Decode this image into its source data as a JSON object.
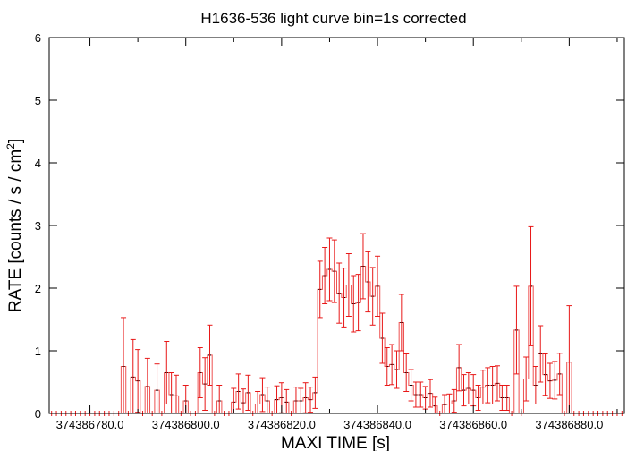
{
  "chart_data": {
    "type": "line",
    "style": "histogram-steps-with-errorbars",
    "title": "H1636-536 light curve bin=1s corrected",
    "xlabel": "MAXI TIME [s]",
    "ylabel_main": "RATE [counts / s / cm",
    "ylabel_sup": "2",
    "ylabel_close": "]",
    "xlim": [
      374386771.5,
      374386891.5
    ],
    "ylim": [
      0,
      6
    ],
    "xticks": [
      374386780,
      374386800,
      374386820,
      374386840,
      374386860,
      374386880
    ],
    "xtick_labels": [
      "374386780.0",
      "374386800.0",
      "374386820.0",
      "374386840.0",
      "374386860.0",
      "374386880.0"
    ],
    "yticks": [
      0,
      1,
      2,
      3,
      4,
      5,
      6
    ],
    "ytick_labels": [
      "0",
      "1",
      "2",
      "3",
      "4",
      "5",
      "6"
    ],
    "grid": false,
    "series": [
      {
        "color": "#e81818",
        "x_start": 374386771.5,
        "bin_width": 1,
        "values": [
          0,
          0,
          0,
          0,
          0,
          0,
          0,
          0,
          0,
          0,
          0,
          0,
          0,
          0,
          0,
          0.75,
          0,
          0.58,
          0.52,
          0,
          0.43,
          0,
          0.37,
          0,
          0.65,
          0.3,
          0.28,
          0,
          0.2,
          0,
          0,
          0.65,
          0.47,
          0.93,
          0,
          0.2,
          0,
          0,
          0.18,
          0.35,
          0.17,
          0.33,
          0,
          0.15,
          0.3,
          0.2,
          0,
          0.22,
          0.25,
          0.18,
          0,
          0.2,
          0.2,
          0.25,
          0.22,
          0.33,
          1.98,
          2.2,
          2.3,
          2.27,
          1.92,
          1.85,
          2.05,
          1.75,
          1.77,
          2.35,
          2.1,
          1.87,
          2.03,
          1.2,
          0.75,
          0.78,
          0.7,
          1.45,
          0.65,
          0.45,
          0.3,
          0.3,
          0.25,
          0.32,
          0.12,
          0,
          0.14,
          0.15,
          0.2,
          0.73,
          0.37,
          0.4,
          0.37,
          0.25,
          0.42,
          0.45,
          0.45,
          0.48,
          0.25,
          0.25,
          0,
          1.33,
          0,
          0.55,
          2.03,
          0.45,
          0.95,
          0.62,
          0.52,
          0.53,
          0.63,
          0,
          0.82,
          0,
          0,
          0,
          0,
          0,
          0,
          0,
          0,
          0,
          0,
          0
        ],
        "errors": [
          0,
          0,
          0,
          0,
          0,
          0,
          0,
          0,
          0,
          0,
          0,
          0,
          0,
          0,
          0,
          0.78,
          0,
          0.6,
          0.5,
          0,
          0.45,
          0,
          0.42,
          0,
          0.5,
          0.35,
          0.33,
          0,
          0.25,
          0,
          0,
          0.4,
          0.42,
          0.48,
          0,
          0.25,
          0,
          0,
          0.22,
          0.28,
          0.22,
          0.28,
          0,
          0.2,
          0.27,
          0.22,
          0,
          0.22,
          0.24,
          0.2,
          0,
          0.22,
          0.2,
          0.24,
          0.2,
          0.25,
          0.45,
          0.45,
          0.5,
          0.5,
          0.48,
          0.47,
          0.5,
          0.45,
          0.45,
          0.52,
          0.48,
          0.46,
          0.48,
          0.4,
          0.3,
          0.32,
          0.3,
          0.45,
          0.3,
          0.25,
          0.2,
          0.2,
          0.18,
          0.22,
          0.14,
          0,
          0.16,
          0.16,
          0.18,
          0.37,
          0.25,
          0.25,
          0.25,
          0.2,
          0.27,
          0.28,
          0.3,
          0.28,
          0.2,
          0.2,
          0,
          0.7,
          0,
          0.35,
          0.95,
          0.3,
          0.45,
          0.33,
          0.28,
          0.3,
          0.33,
          0,
          0.9,
          0,
          0,
          0,
          0,
          0,
          0,
          0,
          0,
          0,
          0,
          0
        ]
      }
    ]
  }
}
